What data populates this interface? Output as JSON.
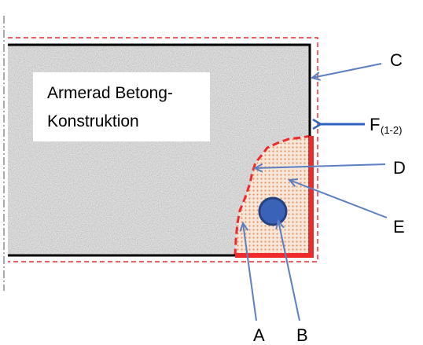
{
  "diagram": {
    "concrete_text_line1": "Armerad Betong-",
    "concrete_text_line2": "Konstruktion",
    "labels": {
      "A": "A",
      "B": "B",
      "C": "C",
      "D": "D",
      "E": "E",
      "F_main": "F",
      "F_sub": "(1-2)"
    },
    "colors": {
      "dashed_outline": "#e8282b",
      "fire_edge": "#ee2a2a",
      "arrow_blue": "#5b7fc0",
      "force_arrow": "#2f62c2",
      "rebar_fill": "#3a63b8",
      "rebar_stroke": "#24427f",
      "damage_dots": "#e8925e",
      "damage_bg": "#f7e7da",
      "concrete_base": "#d9d9d9",
      "text_box": "#ffffff"
    }
  }
}
